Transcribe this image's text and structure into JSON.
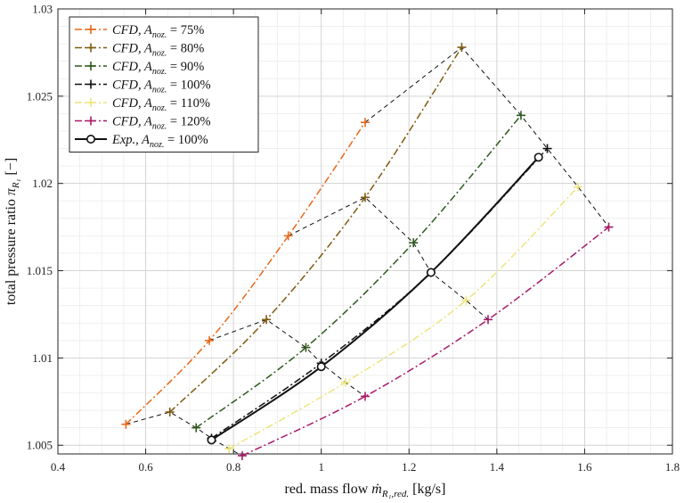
{
  "chart_data": {
    "type": "line",
    "xlabel": "red. mass flow ṁ_{R1,red.} [kg/s]",
    "ylabel": "total pressure ratio π_{R1} [−]",
    "xlim": [
      0.4,
      1.8
    ],
    "ylim": [
      1.0045,
      1.03
    ],
    "xticks": [
      0.4,
      0.6,
      0.8,
      1.0,
      1.2,
      1.4,
      1.6,
      1.8
    ],
    "xtick_labels": [
      "0.4",
      "0.6",
      "0.8",
      "1",
      "1.2",
      "1.4",
      "1.6",
      "1.8"
    ],
    "yticks": [
      1.005,
      1.01,
      1.015,
      1.02,
      1.025,
      1.03
    ],
    "ytick_labels": [
      "1.005",
      "1.01",
      "1.015",
      "1.02",
      "1.025",
      "1.03"
    ],
    "grid": true,
    "minor_grid": true,
    "legend_position": "top-left",
    "series": [
      {
        "name": "CFD, A_{noz.} = 75%",
        "color": "#E8681A",
        "line_style": "dashdot",
        "marker": "plus",
        "x": [
          0.555,
          0.745,
          0.925,
          1.1
        ],
        "y": [
          1.0062,
          1.011,
          1.017,
          1.0235
        ]
      },
      {
        "name": "CFD, A_{noz.} = 80%",
        "color": "#7F5A10",
        "line_style": "dashdot",
        "marker": "plus",
        "x": [
          0.655,
          0.875,
          1.1,
          1.32
        ],
        "y": [
          1.0069,
          1.0122,
          1.0192,
          1.0278
        ]
      },
      {
        "name": "CFD, A_{noz.} = 90%",
        "color": "#2F5A1E",
        "line_style": "dashdot",
        "marker": "plus",
        "x": [
          0.715,
          0.965,
          1.21,
          1.455
        ],
        "y": [
          1.006,
          1.0106,
          1.0166,
          1.0239
        ]
      },
      {
        "name": "CFD, A_{noz.} = 100%",
        "color": "#111111",
        "line_style": "dashdot",
        "marker": "plus",
        "x": [
          0.75,
          1.0,
          1.25,
          1.515
        ],
        "y": [
          1.0054,
          1.0097,
          1.0149,
          1.022
        ]
      },
      {
        "name": "CFD, A_{noz.} = 110%",
        "color": "#EDE47E",
        "line_style": "dashdot",
        "marker": "plus",
        "x": [
          0.79,
          1.055,
          1.33,
          1.585
        ],
        "y": [
          1.0048,
          1.0086,
          1.0133,
          1.0198
        ]
      },
      {
        "name": "CFD, A_{noz.} = 120%",
        "color": "#A81B6A",
        "line_style": "dashdot",
        "marker": "plus",
        "x": [
          0.82,
          1.1,
          1.38,
          1.655
        ],
        "y": [
          1.0044,
          1.0078,
          1.0122,
          1.0175
        ]
      },
      {
        "name": "Exp., A_{noz.} = 100%",
        "color": "#111111",
        "line_style": "solid",
        "marker": "circle",
        "x": [
          0.75,
          1.0,
          1.25,
          1.495
        ],
        "y": [
          1.0053,
          1.0095,
          1.0149,
          1.0215
        ]
      }
    ],
    "connectors": [
      {
        "x": [
          0.555,
          0.655,
          0.715,
          0.75,
          0.79,
          0.82
        ],
        "y": [
          1.0062,
          1.0069,
          1.006,
          1.0054,
          1.0048,
          1.0044
        ]
      },
      {
        "x": [
          0.745,
          0.875,
          0.965,
          1.0,
          1.055,
          1.1
        ],
        "y": [
          1.011,
          1.0122,
          1.0106,
          1.0097,
          1.0086,
          1.0078
        ]
      },
      {
        "x": [
          0.925,
          1.1,
          1.21,
          1.25,
          1.33,
          1.38
        ],
        "y": [
          1.017,
          1.0192,
          1.0166,
          1.0149,
          1.0133,
          1.0122
        ]
      },
      {
        "x": [
          1.1,
          1.32,
          1.455,
          1.515,
          1.585,
          1.655
        ],
        "y": [
          1.0235,
          1.0278,
          1.0239,
          1.022,
          1.0198,
          1.0175
        ]
      }
    ]
  }
}
